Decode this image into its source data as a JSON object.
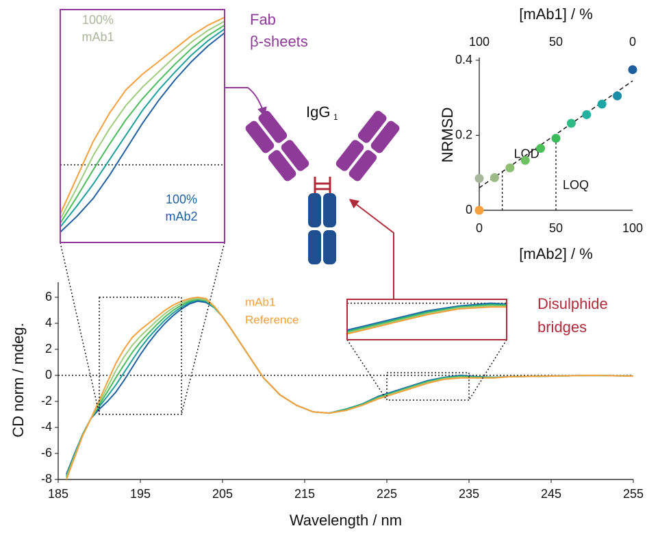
{
  "chart_data": [
    {
      "type": "line",
      "xlabel": "Wavelength / nm",
      "ylabel": "CD norm / mdeg.",
      "x": [
        186,
        187,
        188,
        189,
        190,
        191,
        192,
        193,
        194,
        195,
        196,
        197,
        198,
        199,
        200,
        201,
        202,
        203,
        204,
        205,
        206,
        208,
        210,
        212,
        214,
        216,
        218,
        220,
        222,
        224,
        226,
        228,
        230,
        232,
        234,
        236,
        238,
        240,
        245,
        250,
        255
      ],
      "series": [
        {
          "color": "#1f5fa0",
          "values": [
            -7.6,
            -6.0,
            -4.5,
            -3.3,
            -2.6,
            -2.0,
            -1.3,
            -0.4,
            0.6,
            1.6,
            2.5,
            3.3,
            4.0,
            4.6,
            5.1,
            5.5,
            5.7,
            5.6,
            5.2,
            4.5,
            3.6,
            1.7,
            -0.2,
            -1.5,
            -2.3,
            -2.8,
            -2.9,
            -2.6,
            -2.2,
            -1.6,
            -1.2,
            -0.8,
            -0.4,
            -0.15,
            0,
            -0.1,
            -0.15,
            -0.1,
            -0.05,
            0,
            -0.05
          ]
        },
        {
          "color": "#1a9f9a",
          "values": [
            -7.7,
            -6.1,
            -4.5,
            -3.3,
            -2.4,
            -1.6,
            -0.75,
            0.2,
            1.15,
            2.1,
            2.9,
            3.6,
            4.25,
            4.8,
            5.25,
            5.6,
            5.8,
            5.7,
            5.2,
            4.5,
            3.6,
            1.7,
            -0.2,
            -1.5,
            -2.3,
            -2.8,
            -2.9,
            -2.6,
            -2.2,
            -1.65,
            -1.25,
            -0.85,
            -0.45,
            -0.18,
            -0.05,
            -0.12,
            -0.16,
            -0.1,
            -0.05,
            0,
            -0.05
          ]
        },
        {
          "color": "#4cbb5c",
          "values": [
            -7.8,
            -6.15,
            -4.55,
            -3.3,
            -2.25,
            -1.25,
            -0.2,
            0.8,
            1.75,
            2.55,
            3.25,
            3.9,
            4.5,
            5.0,
            5.4,
            5.7,
            5.85,
            5.75,
            5.25,
            4.5,
            3.6,
            1.7,
            -0.2,
            -1.5,
            -2.3,
            -2.8,
            -2.9,
            -2.65,
            -2.25,
            -1.7,
            -1.3,
            -0.9,
            -0.5,
            -0.22,
            -0.1,
            -0.15,
            -0.18,
            -0.1,
            -0.05,
            0,
            -0.05
          ]
        },
        {
          "color": "#9ccc7a",
          "values": [
            -7.9,
            -6.2,
            -4.6,
            -3.3,
            -2.1,
            -0.9,
            0.35,
            1.4,
            2.3,
            3.0,
            3.6,
            4.2,
            4.75,
            5.2,
            5.55,
            5.8,
            5.9,
            5.8,
            5.3,
            4.5,
            3.6,
            1.7,
            -0.2,
            -1.5,
            -2.3,
            -2.8,
            -2.9,
            -2.7,
            -2.3,
            -1.75,
            -1.35,
            -0.95,
            -0.55,
            -0.25,
            -0.15,
            -0.2,
            -0.2,
            -0.1,
            -0.05,
            0,
            -0.05
          ]
        },
        {
          "color": "#f5a03c",
          "values": [
            -8.0,
            -6.3,
            -4.6,
            -3.3,
            -1.9,
            -0.5,
            0.9,
            2.0,
            2.9,
            3.5,
            4.0,
            4.5,
            5.0,
            5.4,
            5.7,
            5.9,
            6.0,
            5.9,
            5.3,
            4.5,
            3.6,
            1.7,
            -0.2,
            -1.5,
            -2.3,
            -2.8,
            -2.9,
            -2.7,
            -2.3,
            -1.8,
            -1.4,
            -1.0,
            -0.6,
            -0.3,
            -0.2,
            -0.2,
            -0.2,
            -0.1,
            -0.05,
            0,
            -0.05
          ]
        }
      ],
      "xlim": [
        185,
        255
      ],
      "ylim": [
        -8,
        6
      ],
      "xticks": [
        185,
        195,
        205,
        215,
        225,
        235,
        245,
        255
      ],
      "yticks": [
        -8,
        -6,
        -4,
        -2,
        0,
        2,
        4,
        6
      ],
      "hline": 0,
      "zooms": [
        {
          "xlim": [
            190,
            200
          ],
          "ylim": [
            -3,
            6
          ],
          "color": "#8e3a98",
          "labels": [
            {
              "text": [
                "100%",
                "mAb1"
              ],
              "color": "#a9b69a"
            },
            {
              "text": [
                "100%",
                "mAb2"
              ],
              "color": "#1f5fa0"
            }
          ]
        },
        {
          "xlim": [
            225,
            235
          ],
          "ylim": [
            -1.9,
            0.2
          ],
          "color": "#b02a3a",
          "labels": []
        }
      ],
      "annotations": [
        {
          "text": [
            "mAb1",
            "Reference"
          ],
          "color": "#f5a03c"
        },
        {
          "text": [
            "Fab",
            "β-sheets"
          ],
          "color": "#8e3a98"
        },
        {
          "text": [
            "Disulphide",
            "bridges"
          ],
          "color": "#b02a3a"
        }
      ]
    },
    {
      "type": "scatter",
      "xlabel": "[mAb2] / %",
      "x2label": "[mAb1] / %",
      "ylabel": "NRMSD",
      "x": [
        0,
        0,
        10,
        20,
        30,
        40,
        50,
        60,
        70,
        80,
        90,
        100
      ],
      "values": [
        0,
        0.085,
        0.087,
        0.113,
        0.133,
        0.165,
        0.192,
        0.232,
        0.255,
        0.283,
        0.305,
        0.375
      ],
      "colors": [
        "#f5a03c",
        "#a7b79b",
        "#9bbb86",
        "#8cbf72",
        "#6cc060",
        "#4dbf5a",
        "#3bbb5c",
        "#2fba86",
        "#22b2a0",
        "#1ca7a6",
        "#1b8ca6",
        "#1d5f9e"
      ],
      "fit": {
        "x": [
          0,
          100
        ],
        "values": [
          0.06,
          0.345
        ]
      },
      "lod": 15,
      "loq": 50,
      "lod_label": "LOD",
      "loq_label": "LOQ",
      "xlim": [
        0,
        100
      ],
      "xticks": [
        0,
        50,
        100
      ],
      "x2lim": [
        100,
        0
      ],
      "x2ticks": [
        100,
        50,
        0
      ],
      "ylim": [
        0,
        0.4
      ],
      "yticks": [
        0,
        0.2,
        0.4
      ]
    }
  ],
  "diagram": {
    "label": "IgG",
    "subscript": "1"
  }
}
